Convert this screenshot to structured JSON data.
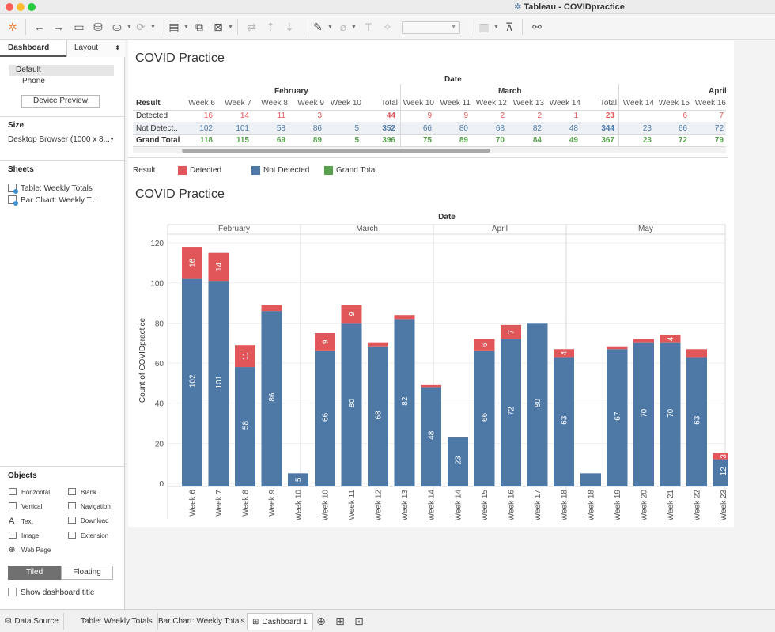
{
  "window": {
    "title": "Tableau - COVIDpractice"
  },
  "sidebar": {
    "tab_dashboard": "Dashboard",
    "tab_layout": "Layout",
    "devices": [
      "Default",
      "Phone"
    ],
    "device_preview": "Device Preview",
    "size_heading": "Size",
    "size_value": "Desktop Browser (1000 x 8...",
    "sheets_heading": "Sheets",
    "sheets": [
      "Table: Weekly Totals",
      "Bar Chart: Weekly T..."
    ],
    "objects_heading": "Objects",
    "objects": [
      "Horizontal",
      "Blank",
      "Vertical",
      "Navigation",
      "Text",
      "Download",
      "Image",
      "Extension",
      "Web Page"
    ],
    "tiled": "Tiled",
    "floating": "Floating",
    "show_title": "Show dashboard title"
  },
  "table": {
    "title": "COVID Practice",
    "date_header": "Date",
    "result_header": "Result",
    "months": [
      "February",
      "March",
      "April"
    ],
    "columns": [
      "Week 6",
      "Week 7",
      "Week 8",
      "Week 9",
      "Week 10",
      "Total",
      "Week 10",
      "Week 11",
      "Week 12",
      "Week 13",
      "Week 14",
      "Total",
      "Week 14",
      "Week 15",
      "Week 16"
    ],
    "rows": [
      {
        "label": "Detected",
        "values": [
          "16",
          "14",
          "11",
          "3",
          "",
          "44",
          "9",
          "9",
          "2",
          "2",
          "1",
          "23",
          "",
          "6",
          "7"
        ]
      },
      {
        "label": "Not Detect..",
        "values": [
          "102",
          "101",
          "58",
          "86",
          "5",
          "352",
          "66",
          "80",
          "68",
          "82",
          "48",
          "344",
          "23",
          "66",
          "72"
        ]
      },
      {
        "label": "Grand Total",
        "values": [
          "118",
          "115",
          "69",
          "89",
          "5",
          "396",
          "75",
          "89",
          "70",
          "84",
          "49",
          "367",
          "23",
          "72",
          "79"
        ]
      }
    ]
  },
  "legend": {
    "title": "Result",
    "items": [
      {
        "label": "Detected",
        "color": "#e15759"
      },
      {
        "label": "Not Detected",
        "color": "#4e79a7"
      },
      {
        "label": "Grand Total",
        "color": "#59a14f"
      }
    ]
  },
  "chart_data": {
    "type": "bar",
    "title": "COVID Practice",
    "top_header": "Date",
    "ylabel": "Count of COVIDpractice",
    "ylim": [
      0,
      120
    ],
    "yticks": [
      0,
      20,
      40,
      60,
      80,
      100,
      120
    ],
    "groups": [
      {
        "month": "February",
        "categories": [
          "Week 6",
          "Week 7",
          "Week 8",
          "Week 9",
          "Week 10"
        ]
      },
      {
        "month": "March",
        "categories": [
          "Week 10",
          "Week 11",
          "Week 12",
          "Week 13",
          "Week 14"
        ]
      },
      {
        "month": "April",
        "categories": [
          "Week 14",
          "Week 15",
          "Week 16",
          "Week 17",
          "Week 18"
        ]
      },
      {
        "month": "May",
        "categories": [
          "Week 18",
          "Week 19",
          "Week 20",
          "Week 21",
          "Week 22",
          "Week 23"
        ]
      }
    ],
    "series": [
      {
        "name": "Not Detected",
        "color": "#4e79a7",
        "values": [
          102,
          101,
          58,
          86,
          5,
          66,
          80,
          68,
          82,
          48,
          23,
          66,
          72,
          80,
          63,
          5,
          67,
          70,
          70,
          63,
          12
        ],
        "labels": [
          "102",
          "101",
          "58",
          "86",
          "5",
          "66",
          "80",
          "68",
          "82",
          "48",
          "23",
          "66",
          "72",
          "80",
          "63",
          "",
          "67",
          "70",
          "70",
          "63",
          "12"
        ]
      },
      {
        "name": "Detected",
        "color": "#e15759",
        "values": [
          16,
          14,
          11,
          3,
          0,
          9,
          9,
          2,
          2,
          1,
          0,
          6,
          7,
          0,
          4,
          0,
          1,
          2,
          4,
          4,
          3
        ],
        "labels": [
          "16",
          "14",
          "11",
          "",
          "",
          "9",
          "9",
          "",
          "",
          "",
          "",
          "6",
          "7",
          "",
          "4",
          "",
          "",
          "",
          "4",
          "",
          "3"
        ]
      }
    ]
  },
  "bottom_tabs": [
    "Data Source",
    "Table: Weekly Totals",
    "Bar Chart: Weekly Totals",
    "Dashboard 1"
  ]
}
